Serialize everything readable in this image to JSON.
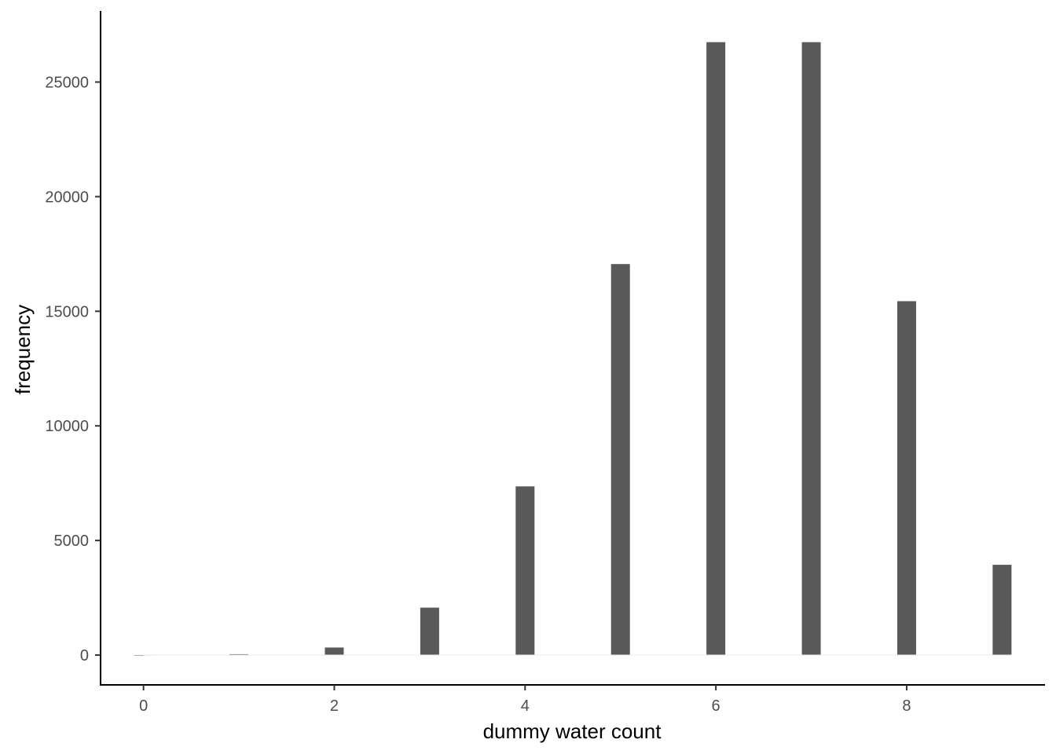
{
  "chart_data": {
    "type": "bar",
    "x": [
      0,
      1,
      2,
      3,
      4,
      5,
      6,
      7,
      8,
      9
    ],
    "values": [
      0,
      40,
      330,
      2070,
      7360,
      17060,
      26740,
      26740,
      15440,
      3940
    ],
    "xlabel": "dummy water count",
    "ylabel": "frequency",
    "xlim": [
      -0.45,
      9.45
    ],
    "ylim": [
      -1300,
      28100
    ],
    "xticks": [
      0,
      2,
      4,
      6,
      8
    ],
    "yticks": [
      0,
      5000,
      10000,
      15000,
      20000,
      25000
    ],
    "grid": false,
    "bar_color": "#595959",
    "baseline_color": "#ebebeb"
  }
}
